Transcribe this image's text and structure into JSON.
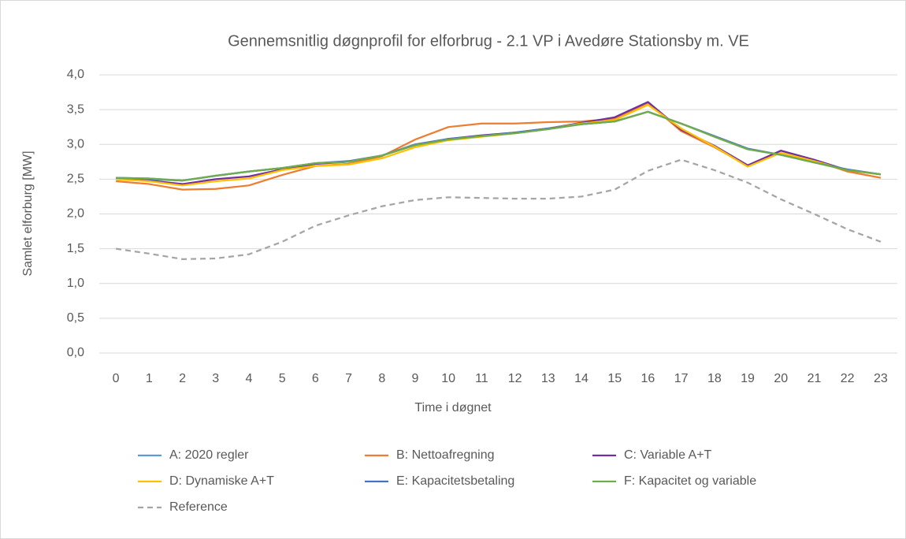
{
  "chart_data": {
    "type": "line",
    "title": "Gennemsnitlig døgnprofil for elforbrug - 2.1 VP i Avedøre Stationsby m. VE",
    "x_label": "Time i døgnet",
    "y_label": "Samlet elforburg [MW]",
    "categories": [
      "0",
      "1",
      "2",
      "3",
      "4",
      "5",
      "6",
      "7",
      "8",
      "9",
      "10",
      "11",
      "12",
      "13",
      "14",
      "15",
      "16",
      "17",
      "18",
      "19",
      "20",
      "21",
      "22",
      "23"
    ],
    "ylim": [
      0,
      4
    ],
    "yticks": [
      {
        "value": 0,
        "label": "0,0"
      },
      {
        "value": 0.5,
        "label": "0,5"
      },
      {
        "value": 1,
        "label": "1,0"
      },
      {
        "value": 1.5,
        "label": "1,5"
      },
      {
        "value": 2,
        "label": "2,0"
      },
      {
        "value": 2.5,
        "label": "2,5"
      },
      {
        "value": 3,
        "label": "3,0"
      },
      {
        "value": 3.5,
        "label": "3,5"
      },
      {
        "value": 4,
        "label": "4,0"
      }
    ],
    "grid": true,
    "legend": "bottom",
    "series": [
      {
        "name": "A: 2020 regler",
        "color": "#5B9BD5",
        "values": [
          2.52,
          2.51,
          2.48,
          2.55,
          2.61,
          2.66,
          2.73,
          2.75,
          2.84,
          2.99,
          3.07,
          3.12,
          3.16,
          3.22,
          3.29,
          3.33,
          3.47,
          3.3,
          3.11,
          2.93,
          2.85,
          2.74,
          2.63,
          2.57
        ]
      },
      {
        "name": "B: Nettoafregning",
        "color": "#ED7D31",
        "values": [
          2.47,
          2.43,
          2.35,
          2.36,
          2.41,
          2.56,
          2.69,
          2.72,
          2.83,
          3.07,
          3.25,
          3.3,
          3.3,
          3.32,
          3.33,
          3.37,
          3.6,
          3.19,
          2.96,
          2.69,
          2.91,
          2.77,
          2.61,
          2.52
        ]
      },
      {
        "name": "C: Variable A+T",
        "color": "#7030A0",
        "values": [
          2.5,
          2.48,
          2.43,
          2.5,
          2.54,
          2.64,
          2.72,
          2.75,
          2.84,
          2.99,
          3.08,
          3.13,
          3.17,
          3.23,
          3.31,
          3.39,
          3.61,
          3.21,
          2.98,
          2.7,
          2.91,
          2.78,
          2.63,
          2.57
        ]
      },
      {
        "name": "D: Dynamiske A+T",
        "color": "#FFC000",
        "values": [
          2.5,
          2.47,
          2.41,
          2.47,
          2.51,
          2.63,
          2.69,
          2.71,
          2.8,
          2.96,
          3.06,
          3.11,
          3.16,
          3.23,
          3.3,
          3.35,
          3.57,
          3.23,
          2.97,
          2.68,
          2.88,
          2.76,
          2.63,
          2.57
        ]
      },
      {
        "name": "E: Kapacitetsbetaling",
        "color": "#4472C4",
        "values": [
          2.52,
          2.5,
          2.48,
          2.55,
          2.61,
          2.66,
          2.73,
          2.76,
          2.84,
          3.0,
          3.08,
          3.12,
          3.17,
          3.23,
          3.29,
          3.33,
          3.47,
          3.3,
          3.12,
          2.94,
          2.85,
          2.74,
          2.64,
          2.57
        ]
      },
      {
        "name": "F: Kapacitet og variable",
        "color": "#70AD47",
        "values": [
          2.52,
          2.51,
          2.48,
          2.55,
          2.61,
          2.66,
          2.73,
          2.75,
          2.84,
          2.99,
          3.07,
          3.12,
          3.16,
          3.22,
          3.29,
          3.33,
          3.47,
          3.3,
          3.11,
          2.93,
          2.85,
          2.74,
          2.63,
          2.57
        ]
      },
      {
        "name": "Reference",
        "color": "#A5A5A5",
        "dashed": true,
        "values": [
          1.5,
          1.43,
          1.35,
          1.36,
          1.42,
          1.6,
          1.83,
          1.98,
          2.11,
          2.2,
          2.24,
          2.23,
          2.22,
          2.22,
          2.25,
          2.35,
          2.62,
          2.78,
          2.63,
          2.45,
          2.21,
          2.0,
          1.78,
          1.6
        ]
      }
    ]
  }
}
